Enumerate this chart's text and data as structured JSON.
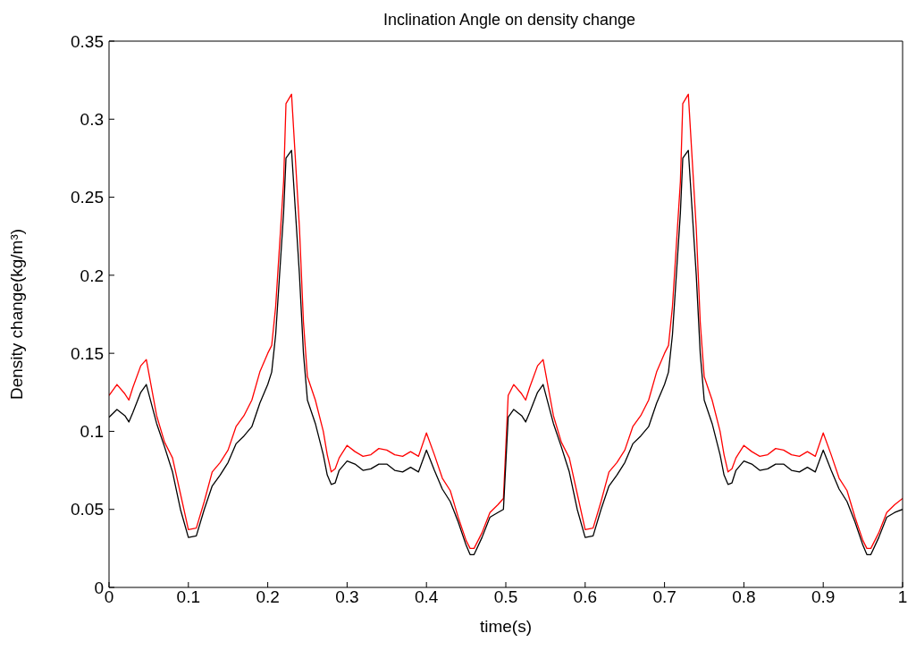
{
  "chart_data": {
    "type": "line",
    "title": "Inclination Angle on density change",
    "xlabel": "time(s)",
    "ylabel": "Density change(kg/m³)",
    "x": [
      0,
      0.01,
      0.02,
      0.025,
      0.03,
      0.04,
      0.047,
      0.06,
      0.07,
      0.08,
      0.09,
      0.1,
      0.11,
      0.12,
      0.13,
      0.14,
      0.15,
      0.16,
      0.17,
      0.18,
      0.19,
      0.2,
      0.205,
      0.21,
      0.22,
      0.223,
      0.23,
      0.24,
      0.245,
      0.25,
      0.26,
      0.27,
      0.275,
      0.28,
      0.285,
      0.29,
      0.3,
      0.31,
      0.32,
      0.33,
      0.34,
      0.35,
      0.36,
      0.37,
      0.38,
      0.39,
      0.4,
      0.41,
      0.42,
      0.43,
      0.44,
      0.45,
      0.455,
      0.46,
      0.47,
      0.48,
      0.49,
      0.497,
      0.503,
      0.51,
      0.52,
      0.525,
      0.53,
      0.54,
      0.547,
      0.56,
      0.57,
      0.58,
      0.59,
      0.6,
      0.61,
      0.62,
      0.63,
      0.64,
      0.65,
      0.66,
      0.67,
      0.68,
      0.69,
      0.7,
      0.705,
      0.71,
      0.72,
      0.723,
      0.73,
      0.74,
      0.745,
      0.75,
      0.76,
      0.77,
      0.775,
      0.78,
      0.785,
      0.79,
      0.8,
      0.81,
      0.82,
      0.83,
      0.84,
      0.85,
      0.86,
      0.87,
      0.88,
      0.89,
      0.9,
      0.91,
      0.92,
      0.93,
      0.94,
      0.95,
      0.955,
      0.96,
      0.97,
      0.98,
      0.99,
      1
    ],
    "series": [
      {
        "color": "#ff0000",
        "values": [
          0.123,
          0.13,
          0.124,
          0.12,
          0.128,
          0.142,
          0.146,
          0.11,
          0.093,
          0.083,
          0.06,
          0.037,
          0.038,
          0.055,
          0.074,
          0.08,
          0.088,
          0.103,
          0.11,
          0.12,
          0.138,
          0.15,
          0.155,
          0.18,
          0.26,
          0.31,
          0.316,
          0.23,
          0.17,
          0.135,
          0.12,
          0.1,
          0.085,
          0.074,
          0.076,
          0.083,
          0.091,
          0.087,
          0.084,
          0.085,
          0.089,
          0.088,
          0.085,
          0.084,
          0.087,
          0.084,
          0.099,
          0.085,
          0.07,
          0.062,
          0.045,
          0.03,
          0.025,
          0.025,
          0.035,
          0.048,
          0.053,
          0.057,
          0.123,
          0.13,
          0.124,
          0.12,
          0.128,
          0.142,
          0.146,
          0.11,
          0.093,
          0.083,
          0.06,
          0.037,
          0.038,
          0.055,
          0.074,
          0.08,
          0.088,
          0.103,
          0.11,
          0.12,
          0.138,
          0.15,
          0.155,
          0.18,
          0.26,
          0.31,
          0.316,
          0.23,
          0.17,
          0.135,
          0.12,
          0.1,
          0.085,
          0.074,
          0.076,
          0.083,
          0.091,
          0.087,
          0.084,
          0.085,
          0.089,
          0.088,
          0.085,
          0.084,
          0.087,
          0.084,
          0.099,
          0.085,
          0.07,
          0.062,
          0.045,
          0.03,
          0.025,
          0.025,
          0.035,
          0.048,
          0.053,
          0.057
        ]
      },
      {
        "color": "#000000",
        "values": [
          0.109,
          0.114,
          0.11,
          0.106,
          0.112,
          0.125,
          0.13,
          0.105,
          0.09,
          0.074,
          0.05,
          0.032,
          0.033,
          0.05,
          0.065,
          0.072,
          0.08,
          0.092,
          0.097,
          0.103,
          0.118,
          0.13,
          0.138,
          0.162,
          0.24,
          0.275,
          0.28,
          0.2,
          0.15,
          0.12,
          0.105,
          0.085,
          0.072,
          0.066,
          0.067,
          0.075,
          0.081,
          0.079,
          0.075,
          0.076,
          0.079,
          0.079,
          0.075,
          0.074,
          0.077,
          0.074,
          0.088,
          0.075,
          0.063,
          0.055,
          0.042,
          0.027,
          0.021,
          0.021,
          0.032,
          0.045,
          0.048,
          0.05,
          0.109,
          0.114,
          0.11,
          0.106,
          0.112,
          0.125,
          0.13,
          0.105,
          0.09,
          0.074,
          0.05,
          0.032,
          0.033,
          0.05,
          0.065,
          0.072,
          0.08,
          0.092,
          0.097,
          0.103,
          0.118,
          0.13,
          0.138,
          0.162,
          0.24,
          0.275,
          0.28,
          0.2,
          0.15,
          0.12,
          0.105,
          0.085,
          0.072,
          0.066,
          0.067,
          0.075,
          0.081,
          0.079,
          0.075,
          0.076,
          0.079,
          0.079,
          0.075,
          0.074,
          0.077,
          0.074,
          0.088,
          0.075,
          0.063,
          0.055,
          0.042,
          0.027,
          0.021,
          0.021,
          0.032,
          0.045,
          0.048,
          0.05
        ]
      }
    ],
    "xlim": [
      0,
      1
    ],
    "xticks": [
      0,
      0.1,
      0.2,
      0.3,
      0.4,
      0.5,
      0.6,
      0.7,
      0.8,
      0.9,
      1
    ],
    "ylim": [
      0,
      0.35
    ],
    "yticks": [
      0,
      0.05,
      0.1,
      0.15,
      0.2,
      0.25,
      0.3,
      0.35
    ],
    "grid": false,
    "legend": false,
    "marker": "none",
    "line_style": "solid"
  }
}
